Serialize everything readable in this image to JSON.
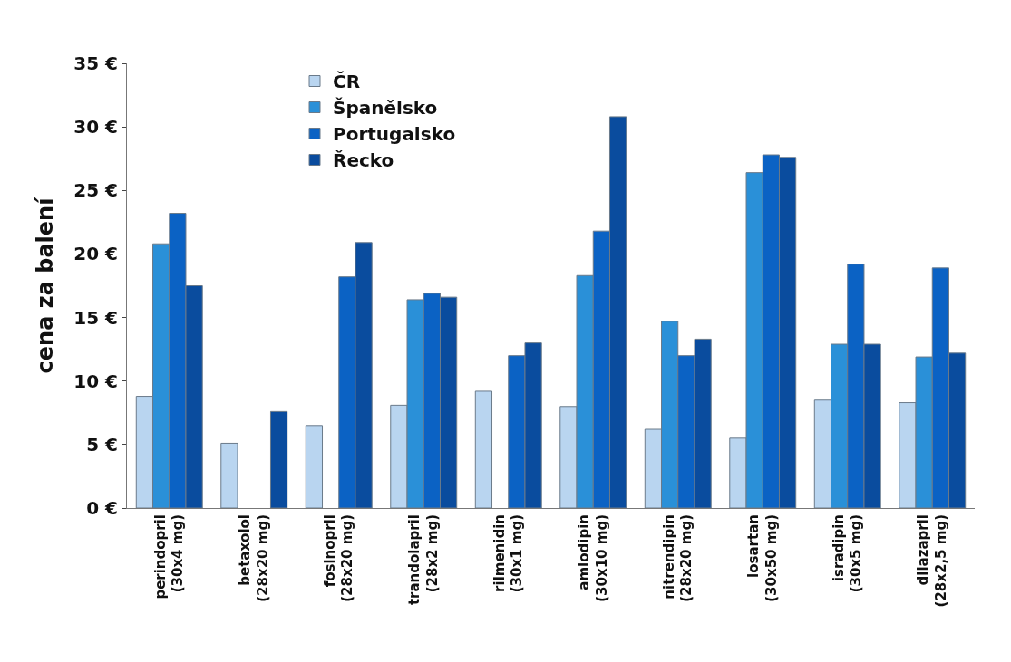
{
  "chart_data": {
    "type": "bar",
    "ylabel": "cena za balení",
    "categories": [
      "perindopril\n(30x4 mg)",
      "betaxolol\n(28x20 mg)",
      "fosinopril\n(28x20 mg)",
      "trandolapril\n(28x2 mg)",
      "rilmenidin\n(30x1 mg)",
      "amlodipin\n(30x10 mg)",
      "nitrendipin\n(28x20 mg)",
      "losartan\n(30x50 mg)",
      "isradipin\n(30x5 mg)",
      "dilazapril\n(28x2,5 mg)"
    ],
    "series": [
      {
        "name": "ČR",
        "color": "#b9d5f0",
        "values": [
          8.8,
          5.1,
          6.5,
          8.1,
          9.2,
          8.0,
          6.2,
          5.5,
          8.5,
          8.3
        ]
      },
      {
        "name": "Španělsko",
        "color": "#2a90d8",
        "values": [
          20.8,
          null,
          null,
          16.4,
          null,
          18.3,
          14.7,
          26.4,
          12.9,
          11.9
        ]
      },
      {
        "name": "Portugalsko",
        "color": "#0b62c4",
        "values": [
          23.2,
          null,
          18.2,
          16.9,
          12.0,
          21.8,
          12.0,
          27.8,
          19.2,
          18.9
        ]
      },
      {
        "name": "Řecko",
        "color": "#0a4c9e",
        "values": [
          17.5,
          7.6,
          20.9,
          16.6,
          13.0,
          30.8,
          13.3,
          27.6,
          12.9,
          12.2
        ]
      }
    ],
    "ylim": [
      0,
      35
    ],
    "yticks": [
      {
        "value": 0,
        "label": "0 €"
      },
      {
        "value": 5,
        "label": "5 €"
      },
      {
        "value": 10,
        "label": "10 €"
      },
      {
        "value": 15,
        "label": "15 €"
      },
      {
        "value": 20,
        "label": "20 €"
      },
      {
        "value": 25,
        "label": "25 €"
      },
      {
        "value": 30,
        "label": "30 €"
      },
      {
        "value": 35,
        "label": "35 €"
      }
    ],
    "legend": "top left"
  }
}
